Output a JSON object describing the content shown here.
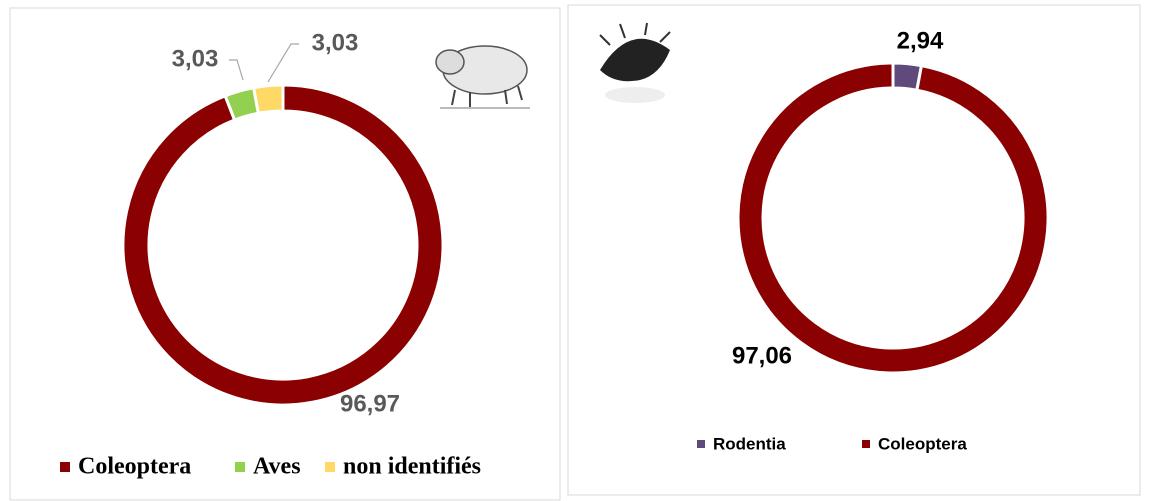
{
  "chart_data": [
    {
      "type": "donut",
      "categories": [
        "Coleoptera",
        "Aves",
        "non identifiés"
      ],
      "values": [
        96.97,
        3.03,
        3.03
      ],
      "value_labels": [
        "96,97",
        "3,03",
        "3,03"
      ],
      "colors": [
        "#8b0000",
        "#92d050",
        "#ffd966"
      ]
    },
    {
      "type": "donut",
      "categories": [
        "Rodentia",
        "Coleoptera"
      ],
      "values": [
        2.94,
        97.06
      ],
      "value_labels": [
        "2,94",
        "97,06"
      ],
      "colors": [
        "#604a7b",
        "#8b0000"
      ]
    }
  ]
}
